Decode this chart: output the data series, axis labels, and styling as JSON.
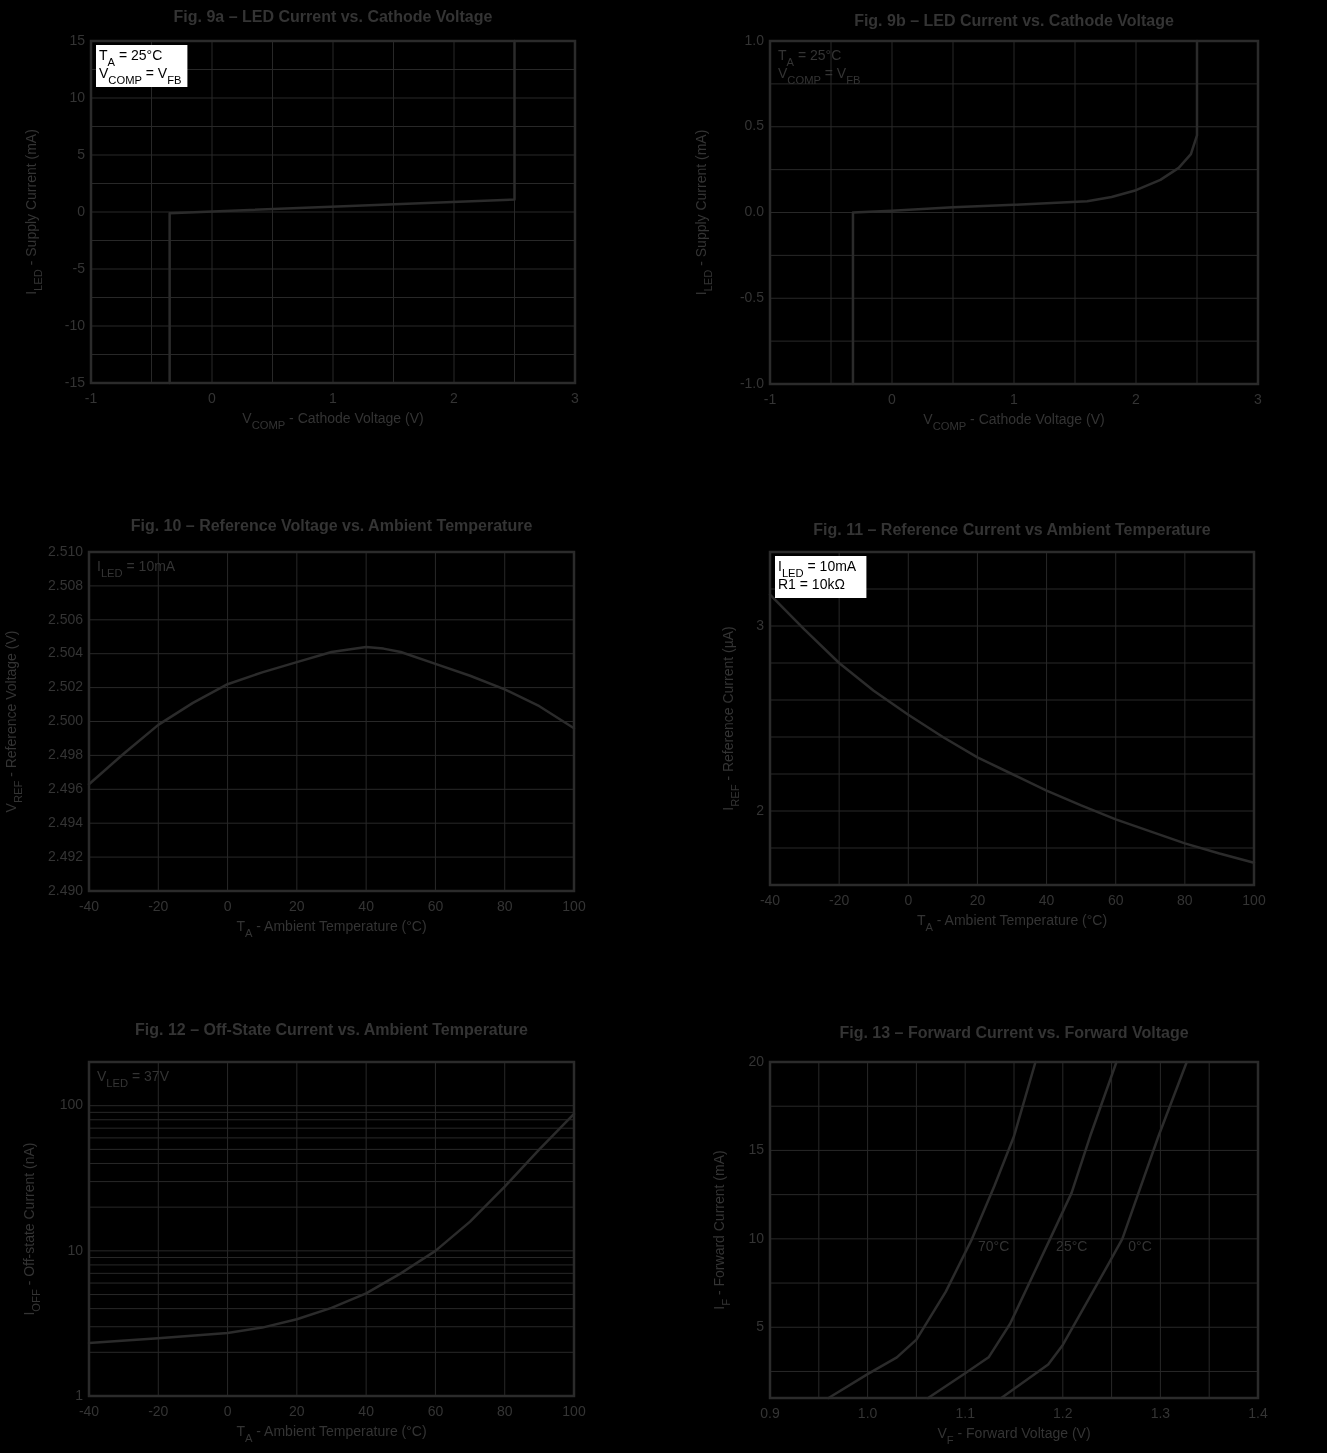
{
  "chart_data": [
    {
      "type": "line",
      "title": "Fig. 9a – LED Current vs. Cathode Voltage",
      "xlabel": "V$_{COMP}$ - Cathode Voltage (V)",
      "ylabel": "I$_{LED}$ - Supply Current (mA)",
      "annotations": [
        "T$_{A}$ = 25°C",
        "V$_{COMP}$ = V$_{FB}$"
      ],
      "color": "#2b2b2b",
      "grid": true,
      "x": [
        -0.35,
        -0.35,
        2.5,
        2.5
      ],
      "values": [
        -15,
        -0.1,
        1.1,
        15
      ],
      "xlim": [
        -1,
        3
      ],
      "xticks": [
        -1,
        {
          "value": -0.5,
          "label": null
        },
        0,
        {
          "value": 0.5,
          "label": null
        },
        1,
        {
          "value": 1.5,
          "label": null
        },
        2,
        {
          "value": 2.5,
          "label": null
        },
        3
      ],
      "ylim": [
        -15,
        15
      ],
      "yticks": [
        -15,
        {
          "value": -12.5,
          "label": null
        },
        -10,
        {
          "value": -7.5,
          "label": null
        },
        -5,
        {
          "value": -2.5,
          "label": null
        },
        0,
        {
          "value": 2.5,
          "label": null
        },
        5,
        {
          "value": 7.5,
          "label": null
        },
        10,
        {
          "value": 12.5,
          "label": null
        },
        15
      ]
    },
    {
      "type": "line",
      "title": "Fig. 9b – LED Current vs. Cathode Voltage",
      "xlabel": "V$_{COMP}$ - Cathode Voltage (V)",
      "ylabel": "I$_{LED}$ - Supply Current (mA)",
      "annotations": [
        "T$_{A}$ = 25°C",
        "V$_{COMP}$ = V$_{FB}$"
      ],
      "color": "#2b2b2b",
      "grid": true,
      "x": [
        -0.32,
        -0.32,
        0,
        0.5,
        1,
        1.6,
        1.8,
        2.0,
        2.2,
        2.35,
        2.45,
        2.5,
        2.5
      ],
      "values": [
        -1,
        0,
        0.01,
        0.03,
        0.045,
        0.065,
        0.09,
        0.13,
        0.19,
        0.26,
        0.34,
        0.45,
        1.0
      ],
      "xlim": [
        -1,
        3
      ],
      "xticks": [
        -1,
        {
          "value": -0.5,
          "label": null
        },
        0,
        {
          "value": 0.5,
          "label": null
        },
        1,
        {
          "value": 1.5,
          "label": null
        },
        2,
        {
          "value": 2.5,
          "label": null
        },
        3
      ],
      "ylim": [
        -1,
        1
      ],
      "yticks": [
        {
          "value": -1,
          "label": "-1.0"
        },
        {
          "value": -0.75,
          "label": null
        },
        {
          "value": -0.5,
          "label": "-0.5"
        },
        {
          "value": -0.25,
          "label": null
        },
        {
          "value": 0,
          "label": "0.0"
        },
        {
          "value": 0.25,
          "label": null
        },
        {
          "value": 0.5,
          "label": "0.5"
        },
        {
          "value": 0.75,
          "label": null
        },
        {
          "value": 1,
          "label": "1.0"
        }
      ]
    },
    {
      "type": "line",
      "title": "Fig. 10 – Reference Voltage vs. Ambient Temperature",
      "xlabel": "T$_{A}$ - Ambient Temperature (°C)",
      "ylabel": "V$_{REF}$ - Reference Voltage (V)",
      "annotations": [
        "I$_{LED}$ = 10mA"
      ],
      "color": "#2b2b2b",
      "grid": true,
      "x": [
        -40,
        -30,
        -20,
        -10,
        0,
        10,
        20,
        30,
        40,
        45,
        50,
        60,
        70,
        80,
        90,
        100
      ],
      "values": [
        2.4963,
        2.4981,
        2.4998,
        2.5011,
        2.5022,
        2.5029,
        2.5035,
        2.5041,
        2.5044,
        2.5043,
        2.5041,
        2.5034,
        2.5027,
        2.5019,
        2.5009,
        2.4996
      ],
      "xlim": [
        -40,
        100
      ],
      "xticks": [
        -40,
        -20,
        0,
        20,
        40,
        60,
        80,
        100
      ],
      "ylim": [
        2.49,
        2.51
      ],
      "yticks": [
        {
          "value": 2.49,
          "label": "2.490"
        },
        {
          "value": 2.492,
          "label": "2.492"
        },
        {
          "value": 2.494,
          "label": "2.494"
        },
        {
          "value": 2.496,
          "label": "2.496"
        },
        {
          "value": 2.498,
          "label": "2.498"
        },
        {
          "value": 2.5,
          "label": "2.500"
        },
        {
          "value": 2.502,
          "label": "2.502"
        },
        {
          "value": 2.504,
          "label": "2.504"
        },
        {
          "value": 2.506,
          "label": "2.506"
        },
        {
          "value": 2.508,
          "label": "2.508"
        },
        {
          "value": 2.51,
          "label": "2.510"
        }
      ]
    },
    {
      "type": "line",
      "title": "Fig. 11 – Reference Current vs Ambient Temperature",
      "xlabel": "T$_{A}$ - Ambient Temperature (°C)",
      "ylabel": "I$_{REF}$ - Reference Current (µA)",
      "annotations": [
        "I$_{LED}$ = 10mA",
        "R1 = 10kΩ"
      ],
      "color": "#2b2b2b",
      "grid": true,
      "x": [
        -40,
        -30,
        -20,
        -10,
        0,
        10,
        20,
        30,
        40,
        50,
        60,
        70,
        80,
        90,
        100
      ],
      "values": [
        3.17,
        2.98,
        2.8,
        2.65,
        2.52,
        2.4,
        2.29,
        2.2,
        2.11,
        2.03,
        1.955,
        1.89,
        1.825,
        1.77,
        1.72
      ],
      "xlim": [
        -40,
        100
      ],
      "xticks": [
        -40,
        -20,
        0,
        20,
        40,
        60,
        80,
        100
      ],
      "ylim": [
        1.6,
        3.4
      ],
      "yticks": [
        {
          "value": 1.8,
          "label": null
        },
        2,
        {
          "value": 2.2,
          "label": null
        },
        {
          "value": 2.4,
          "label": null
        },
        {
          "value": 2.6,
          "label": null
        },
        {
          "value": 2.8,
          "label": null
        },
        3,
        {
          "value": 3.2,
          "label": null
        }
      ]
    },
    {
      "type": "line",
      "title": "Fig. 12 – Off-State Current vs. Ambient Temperature",
      "xlabel": "T$_{A}$ - Ambient Temperature (°C)",
      "ylabel": "I$_{OFF}$ - Off-state Current (nA)",
      "annotations": [
        "V$_{LED}$ = 37V"
      ],
      "color": "#2b2b2b",
      "grid": true,
      "log": true,
      "x": [
        -40,
        -20,
        0,
        10,
        20,
        30,
        40,
        50,
        60,
        70,
        80,
        90,
        100
      ],
      "values": [
        2.32,
        2.5,
        2.72,
        2.96,
        3.38,
        4.05,
        5.1,
        7.0,
        10,
        15.9,
        27.7,
        50,
        87.7
      ],
      "xlim": [
        -40,
        100
      ],
      "xticks": [
        -40,
        -20,
        0,
        20,
        40,
        60,
        80,
        100
      ],
      "ylim": [
        1,
        200
      ],
      "yticks": [
        1,
        {
          "value": 2,
          "label": null
        },
        {
          "value": 3,
          "label": null
        },
        {
          "value": 4,
          "label": null
        },
        {
          "value": 5,
          "label": null
        },
        {
          "value": 6,
          "label": null
        },
        {
          "value": 7,
          "label": null
        },
        {
          "value": 8,
          "label": null
        },
        {
          "value": 9,
          "label": null
        },
        10,
        {
          "value": 20,
          "label": null
        },
        {
          "value": 30,
          "label": null
        },
        {
          "value": 40,
          "label": null
        },
        {
          "value": 50,
          "label": null
        },
        {
          "value": 60,
          "label": null
        },
        {
          "value": 70,
          "label": null
        },
        {
          "value": 80,
          "label": null
        },
        {
          "value": 90,
          "label": null
        },
        100
      ]
    },
    {
      "type": "line",
      "title": "Fig. 13 – Forward Current vs. Forward Voltage",
      "xlabel": "V$_{F}$ - Forward Voltage (V)",
      "ylabel": "I$_{F}$ - Forward Current (mA)",
      "grid": true,
      "series": [
        {
          "name": "70°C",
          "color": "#2b2b2b",
          "x": [
            0.96,
            1.0,
            1.03,
            1.05,
            1.08,
            1.107,
            1.13,
            1.15,
            1.172
          ],
          "values": [
            1,
            2.35,
            3.3,
            4.3,
            7,
            10,
            13,
            15.8,
            20
          ]
        },
        {
          "name": "25°C",
          "color": "#2b2b2b",
          "x": [
            1.062,
            1.1,
            1.124,
            1.146,
            1.187,
            1.209,
            1.228,
            1.255
          ],
          "values": [
            1,
            2.4,
            3.3,
            5.2,
            10,
            12.6,
            15.8,
            20
          ]
        },
        {
          "name": "0°C",
          "color": "#2b2b2b",
          "x": [
            1.137,
            1.185,
            1.2,
            1.246,
            1.261,
            1.298,
            1.327
          ],
          "values": [
            1,
            2.9,
            4,
            8.5,
            10,
            15.8,
            20
          ]
        }
      ],
      "xlim": [
        0.9,
        1.4
      ],
      "xticks": [
        0.9,
        {
          "value": 0.95,
          "label": null
        },
        {
          "value": 1.0,
          "label": "1.0"
        },
        {
          "value": 1.05,
          "label": null
        },
        1.1,
        {
          "value": 1.15,
          "label": null
        },
        1.2,
        {
          "value": 1.25,
          "label": null
        },
        1.3,
        {
          "value": 1.35,
          "label": null
        },
        1.4
      ],
      "ylim": [
        1,
        20
      ],
      "yticks": [
        {
          "value": 2.5,
          "label": null
        },
        5,
        {
          "value": 7.5,
          "label": null
        },
        10,
        {
          "value": 12.5,
          "label": null
        },
        15,
        {
          "value": 17.5,
          "label": null
        },
        20
      ]
    }
  ]
}
